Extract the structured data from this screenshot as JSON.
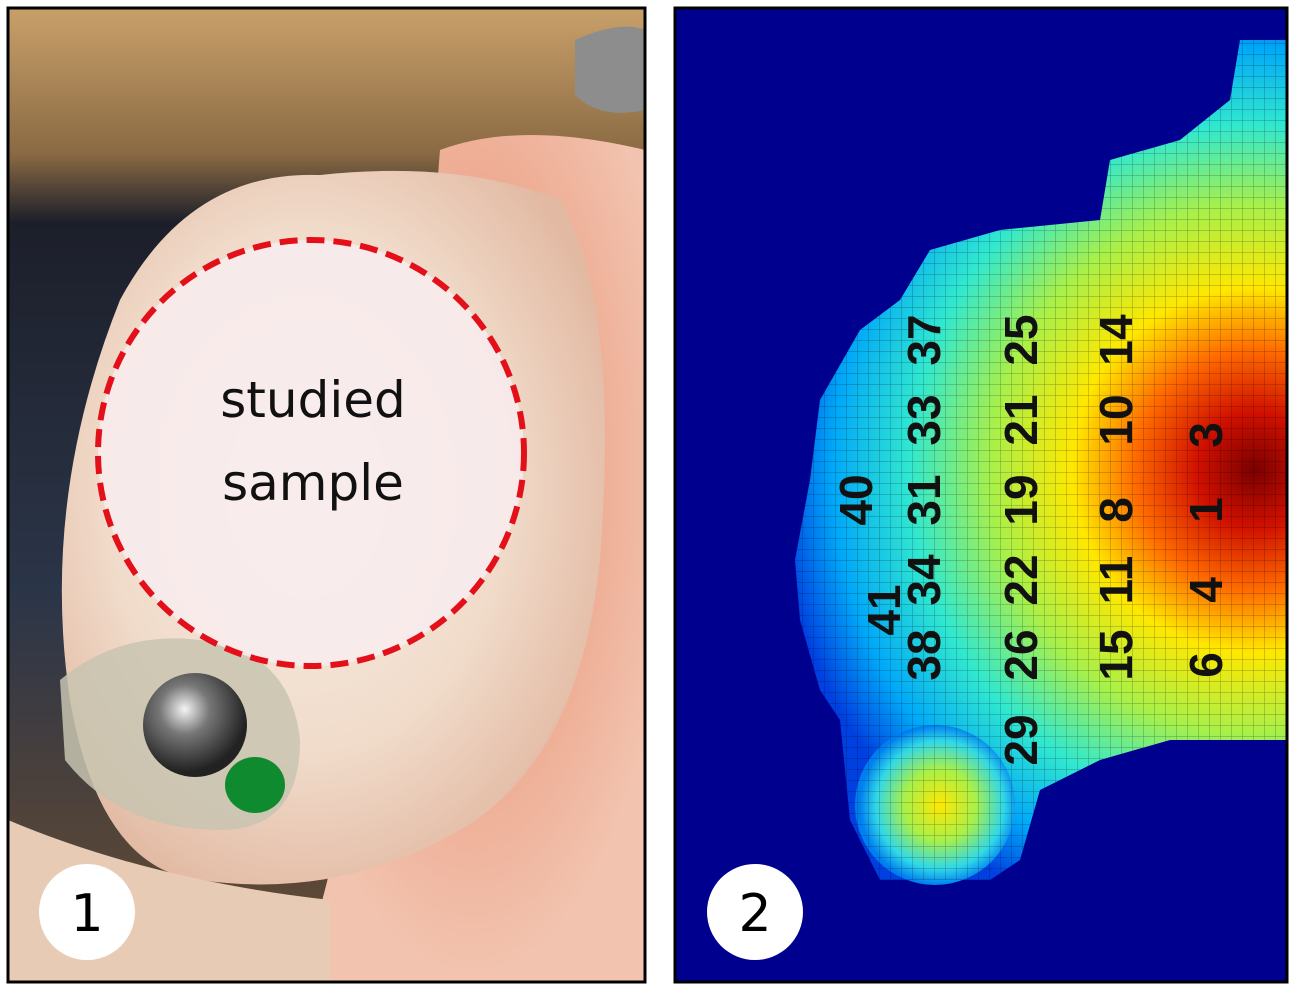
{
  "panels": [
    {
      "label": "1",
      "annotation": [
        "studied",
        "sample"
      ]
    },
    {
      "label": "2",
      "point_labels": [
        "40",
        "41",
        "37",
        "33",
        "31",
        "34",
        "38",
        "25",
        "21",
        "19",
        "22",
        "26",
        "29",
        "14",
        "10",
        "8",
        "11",
        "15",
        "3",
        "1",
        "4",
        "6"
      ]
    }
  ]
}
